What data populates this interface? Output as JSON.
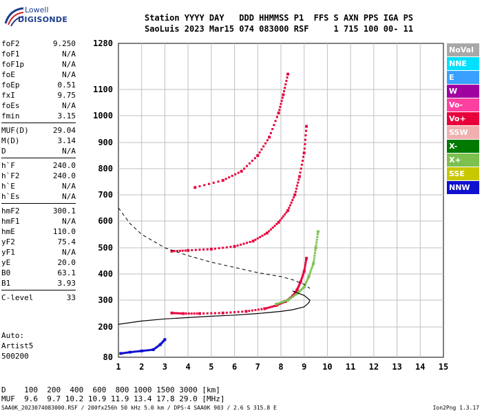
{
  "logo": {
    "line1": "Lowell",
    "line2": "DIGISONDE"
  },
  "header": {
    "row1": "Station YYYY DAY   DDD HHMMSS P1  FFS S AXN PPS IGA PS",
    "row2": "SaoLuis 2023 Mar15 074 083000 RSF     1 715 100 00- 11"
  },
  "params": [
    {
      "name": "foF2",
      "value": "9.250"
    },
    {
      "name": "foF1",
      "value": "N/A"
    },
    {
      "name": "foF1p",
      "value": "N/A"
    },
    {
      "name": "foE",
      "value": "N/A"
    },
    {
      "name": "foEp",
      "value": "0.51"
    },
    {
      "name": "fxI",
      "value": "9.75"
    },
    {
      "name": "foEs",
      "value": "N/A"
    },
    {
      "name": "fmin",
      "value": "3.15"
    },
    {
      "name": "MUF(D)",
      "value": "29.04"
    },
    {
      "name": "M(D)",
      "value": "3.14"
    },
    {
      "name": "D",
      "value": "N/A"
    },
    {
      "name": "h`F",
      "value": "240.0"
    },
    {
      "name": "h`F2",
      "value": "240.0"
    },
    {
      "name": "h`E",
      "value": "N/A"
    },
    {
      "name": "h`Es",
      "value": "N/A"
    },
    {
      "name": "hmF2",
      "value": "300.1"
    },
    {
      "name": "hmF1",
      "value": "N/A"
    },
    {
      "name": "hmE",
      "value": "110.0"
    },
    {
      "name": "yF2",
      "value": "75.4"
    },
    {
      "name": "yF1",
      "value": "N/A"
    },
    {
      "name": "yE",
      "value": "20.0"
    },
    {
      "name": "B0",
      "value": "63.1"
    },
    {
      "name": "B1",
      "value": "3.93"
    },
    {
      "name": "C-level",
      "value": "33"
    }
  ],
  "auto": {
    "line1": "Auto:",
    "line2": "Artist5",
    "line3": "500200"
  },
  "legend": [
    {
      "label": "NoVal",
      "color": "#a8a8a8"
    },
    {
      "label": "NNE",
      "color": "#00e0ff"
    },
    {
      "label": "E",
      "color": "#3aa0ff"
    },
    {
      "label": "W",
      "color": "#a000a0"
    },
    {
      "label": "Vo-",
      "color": "#ff40a0"
    },
    {
      "label": "Vo+",
      "color": "#e8003c"
    },
    {
      "label": "SSW",
      "color": "#f0b0b0"
    },
    {
      "label": "X-",
      "color": "#007a00"
    },
    {
      "label": "X+",
      "color": "#7cc050"
    },
    {
      "label": "SSE",
      "color": "#c8c800"
    },
    {
      "label": "NNW",
      "color": "#1010d0"
    }
  ],
  "dmuf": {
    "row1": "D    100  200  400  600  800 1000 1500 3000 [km]",
    "row2": "MUF  9.6  9.7 10.2 10.9 11.9 13.4 17.8 29.0 [MHz]"
  },
  "footer": {
    "left": "SAA0K_2023074083000.RSF / 200fx256h 50 kHz 5.0 km / DPS-4 SAA0K 903 / 2.6 S 315.8 E",
    "right": "Ion2Png 1.3.17"
  },
  "chart_data": {
    "type": "scatter",
    "xlim": [
      1,
      15
    ],
    "ylim": [
      80,
      1280
    ],
    "x_ticks": [
      1,
      2,
      3,
      4,
      5,
      6,
      7,
      8,
      9,
      10,
      11,
      12,
      13,
      14,
      15
    ],
    "y_ticks": [
      80,
      200,
      300,
      400,
      500,
      600,
      700,
      800,
      900,
      1000,
      1100,
      1280
    ],
    "y_scale": "nonlinear",
    "grid": true,
    "traces": [
      {
        "name": "F2 O-trace",
        "color": "#e8003c",
        "x": [
          3.3,
          3.8,
          4.5,
          5.5,
          6.5,
          7.3,
          7.8,
          8.2,
          8.5,
          8.7,
          8.85,
          9.0,
          9.1
        ],
        "y": [
          252,
          250,
          250,
          252,
          258,
          268,
          280,
          295,
          315,
          340,
          370,
          410,
          460
        ]
      },
      {
        "name": "F2 O-trace 2nd hop",
        "color": "#e8003c",
        "x": [
          3.3,
          4.0,
          5.0,
          6.0,
          6.8,
          7.4,
          7.9,
          8.3,
          8.6,
          8.8,
          9.0,
          9.1
        ],
        "y": [
          487,
          490,
          495,
          505,
          525,
          555,
          595,
          640,
          700,
          770,
          860,
          960
        ]
      },
      {
        "name": "F2 O-trace 3rd hop",
        "color": "#e8003c",
        "x": [
          4.3,
          5.5,
          6.3,
          7.0,
          7.5,
          7.9,
          8.1,
          8.3
        ],
        "y": [
          728,
          755,
          790,
          850,
          920,
          1010,
          1080,
          1160
        ]
      },
      {
        "name": "X-trace",
        "color": "#7cc050",
        "x": [
          7.8,
          8.3,
          8.7,
          9.0,
          9.2,
          9.4,
          9.5,
          9.6
        ],
        "y": [
          285,
          300,
          325,
          350,
          390,
          440,
          500,
          560
        ]
      },
      {
        "name": "E-region echoes",
        "color": "#1010d0",
        "x": [
          1.1,
          1.5,
          2.0,
          2.5,
          2.8,
          3.0
        ],
        "y": [
          95,
          100,
          105,
          110,
          130,
          150
        ]
      }
    ],
    "profile": {
      "x": [
        1.0,
        2.0,
        3.0,
        4.0,
        5.0,
        6.0,
        7.0,
        8.0,
        8.5,
        9.0,
        9.2,
        9.25,
        9.0,
        8.5
      ],
      "y": [
        210,
        222,
        230,
        235,
        240,
        244,
        250,
        258,
        264,
        275,
        290,
        300,
        318,
        335
      ]
    },
    "scale_height_dashed": {
      "x": [
        1.0,
        1.5,
        2.0,
        3.0,
        4.0,
        5.0,
        6.0,
        7.0,
        8.0,
        8.5,
        9.0,
        9.25
      ],
      "y": [
        650,
        590,
        550,
        500,
        470,
        445,
        425,
        405,
        390,
        378,
        360,
        345
      ]
    }
  }
}
